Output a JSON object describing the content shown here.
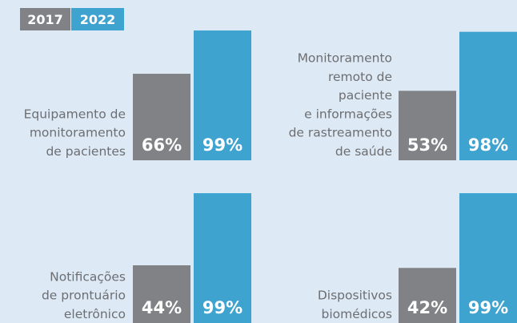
{
  "chart_data": {
    "type": "bar",
    "categories": [
      "Equipamento de\nmonitoramento\nde pacientes",
      "Monitoramento\nremoto de\npaciente\ne informações\nde rastreamento\nde saúde",
      "Notificações\nde prontuário\neletrônico",
      "Dispositivos\nbiomédicos"
    ],
    "series": [
      {
        "name": "2017",
        "color": "#808285",
        "values": [
          66,
          53,
          44,
          42
        ],
        "value_labels": [
          "66%",
          "53%",
          "44%",
          "42%"
        ]
      },
      {
        "name": "2022",
        "color": "#3fa3d0",
        "values": [
          99,
          98,
          99,
          99
        ],
        "value_labels": [
          "99%",
          "98%",
          "99%",
          "99%"
        ]
      }
    ],
    "ylim": [
      0,
      100
    ]
  }
}
